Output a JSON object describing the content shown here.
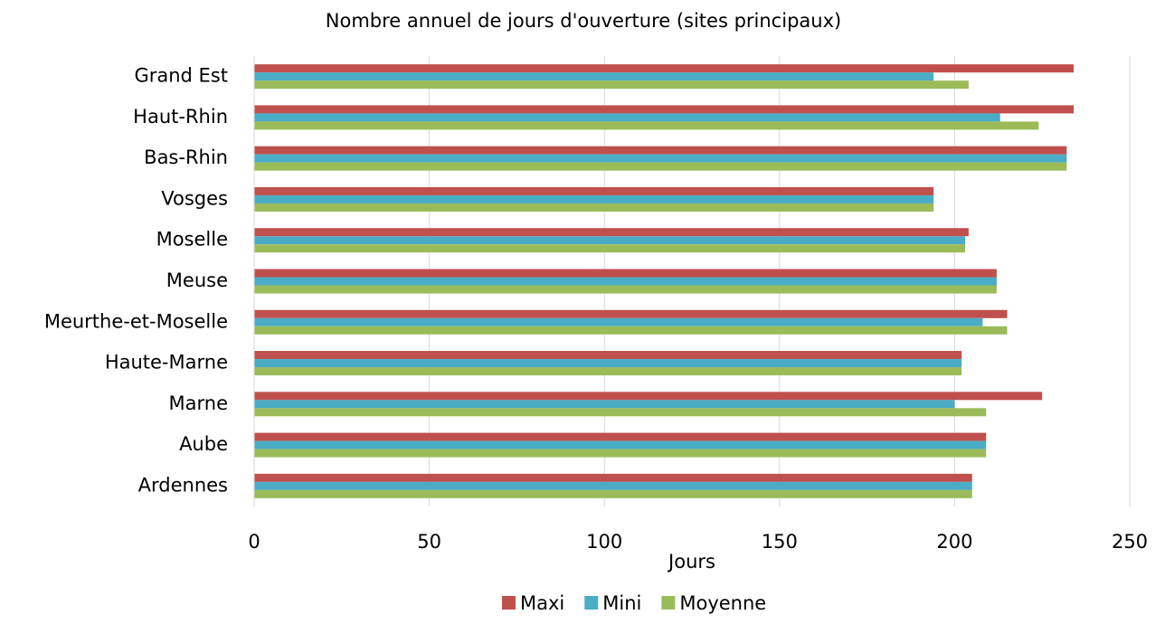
{
  "chart_data": {
    "type": "hbar",
    "title": "Nombre annuel de jours d'ouverture (sites principaux)",
    "categories": [
      "Grand Est",
      "Haut-Rhin",
      "Bas-Rhin",
      "Vosges",
      "Moselle",
      "Meuse",
      "Meurthe-et-Moselle",
      "Haute-Marne",
      "Marne",
      "Aube",
      "Ardennes"
    ],
    "series": [
      {
        "name": "Maxi",
        "color": "#c0504d",
        "values": [
          234,
          234,
          232,
          194,
          204,
          212,
          215,
          202,
          225,
          209,
          205
        ]
      },
      {
        "name": "Mini",
        "color": "#4bacc6",
        "values": [
          194,
          213,
          232,
          194,
          203,
          212,
          208,
          202,
          200,
          209,
          205
        ]
      },
      {
        "name": "Moyenne",
        "color": "#9bbb59",
        "values": [
          204,
          224,
          232,
          194,
          203,
          212,
          215,
          202,
          209,
          209,
          205
        ]
      }
    ],
    "xlabel": "Jours",
    "xlim": [
      0,
      250
    ],
    "xticks": [
      0,
      50,
      100,
      150,
      200,
      250
    ],
    "grid": true,
    "legend": "bottom"
  }
}
